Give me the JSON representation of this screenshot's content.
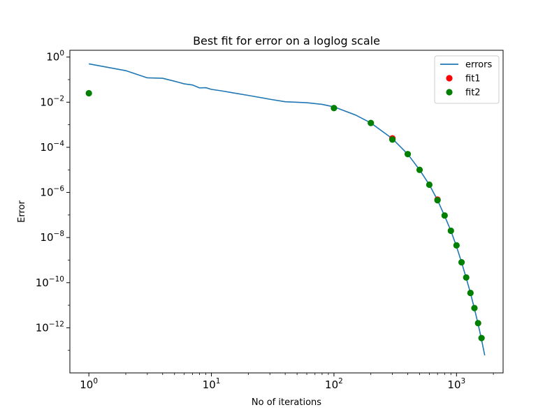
{
  "chart_data": {
    "type": "line",
    "title": "Best fit for error on a loglog scale",
    "xlabel": "No of iterations",
    "ylabel": "Error",
    "xscale": "log",
    "yscale": "log",
    "xlim": [
      0.7,
      2400
    ],
    "ylim": [
      1e-14,
      2
    ],
    "grid": false,
    "legend_position": "top-right",
    "x_ticks": [
      {
        "value": 1,
        "base": "10",
        "exp": "0"
      },
      {
        "value": 10,
        "base": "10",
        "exp": "1"
      },
      {
        "value": 100,
        "base": "10",
        "exp": "2"
      },
      {
        "value": 1000,
        "base": "10",
        "exp": "3"
      }
    ],
    "y_ticks": [
      {
        "value": 1,
        "base": "10",
        "exp": "0"
      },
      {
        "value": 0.01,
        "base": "10",
        "exp": "−2"
      },
      {
        "value": 0.0001,
        "base": "10",
        "exp": "−4"
      },
      {
        "value": 1e-06,
        "base": "10",
        "exp": "−6"
      },
      {
        "value": 1e-08,
        "base": "10",
        "exp": "−8"
      },
      {
        "value": 1e-10,
        "base": "10",
        "exp": "−10"
      },
      {
        "value": 1e-12,
        "base": "10",
        "exp": "−12"
      }
    ],
    "series": [
      {
        "name": "errors",
        "kind": "line",
        "color": "#1f77b4",
        "x": [
          1,
          2,
          3,
          4,
          5,
          6,
          7,
          8,
          9,
          10,
          12,
          15,
          20,
          30,
          40,
          60,
          80,
          100,
          150,
          200,
          300,
          400,
          500,
          600,
          700,
          800,
          900,
          1000,
          1100,
          1200,
          1300,
          1400,
          1500,
          1600,
          1700
        ],
        "y": [
          0.5,
          0.25,
          0.12,
          0.115,
          0.085,
          0.065,
          0.058,
          0.043,
          0.044,
          0.037,
          0.032,
          0.026,
          0.02,
          0.0135,
          0.0105,
          0.0095,
          0.008,
          0.0062,
          0.0027,
          0.0012,
          0.00024,
          5e-05,
          1e-05,
          2.2e-06,
          4.6e-07,
          9e-08,
          2e-08,
          4e-09,
          8e-10,
          1.6e-10,
          3.5e-11,
          7e-12,
          1.5e-12,
          3e-13,
          6e-14
        ]
      },
      {
        "name": "fit1",
        "kind": "scatter",
        "color": "#ff0000",
        "x": [
          300,
          700
        ],
        "y": [
          0.00025,
          4.8e-07
        ]
      },
      {
        "name": "fit2",
        "kind": "scatter",
        "color": "#008000",
        "x": [
          1,
          100,
          200,
          300,
          400,
          500,
          600,
          700,
          800,
          900,
          1000,
          1100,
          1200,
          1300,
          1400,
          1500,
          1600
        ],
        "y": [
          0.025,
          0.0055,
          0.0012,
          0.00022,
          5e-05,
          1e-05,
          2.2e-06,
          4.5e-07,
          9.5e-08,
          2e-08,
          4.5e-09,
          8e-10,
          1.7e-10,
          3.5e-11,
          7.5e-12,
          1.6e-12,
          3.5e-13
        ]
      }
    ]
  }
}
